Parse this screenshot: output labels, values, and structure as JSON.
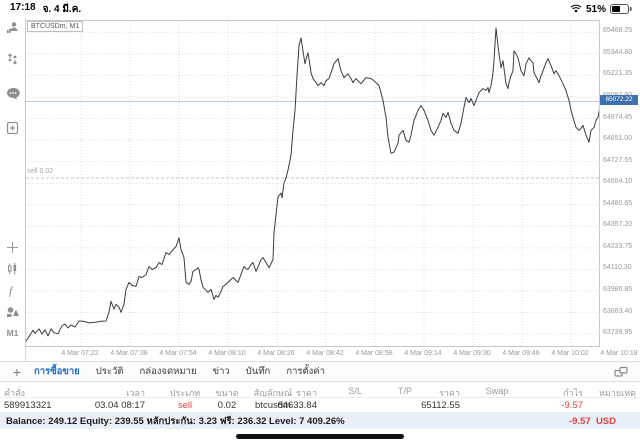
{
  "status_bar": {
    "time": "17:18",
    "date": "จ. 4 มี.ค.",
    "battery_percent": "51%"
  },
  "chart": {
    "symbol_label": "BTCUSDm, M1"
  },
  "sidebar": {
    "timeframe": "M1"
  },
  "tabs": [
    {
      "slug": "trade",
      "label": "การซื้อขาย",
      "active": true
    },
    {
      "slug": "history",
      "label": "ประวัติ",
      "active": false
    },
    {
      "slug": "mailbox",
      "label": "กล่องจดหมาย",
      "active": false
    },
    {
      "slug": "news",
      "label": "ข่าว",
      "active": false
    },
    {
      "slug": "journal",
      "label": "บันทึก",
      "active": false
    },
    {
      "slug": "settings",
      "label": "การตั้งค่า",
      "active": false
    }
  ],
  "positions_table": {
    "columns": [
      {
        "key": "order",
        "label": "คำสั่ง",
        "value": "589913321",
        "red": false
      },
      {
        "key": "time",
        "label": "เวลา",
        "value": "03.04 08:17",
        "red": false
      },
      {
        "key": "type",
        "label": "ประเภท",
        "value": "sell",
        "red": true
      },
      {
        "key": "volume",
        "label": "ขนาด",
        "value": "0.02",
        "red": false
      },
      {
        "key": "symbol",
        "label": "สัญลักษณ์",
        "value": "btcusdm",
        "red": false
      },
      {
        "key": "price-open",
        "label": "ราคา",
        "value": "64633.84",
        "red": false
      },
      {
        "key": "sl",
        "label": "S/L",
        "value": "",
        "red": false
      },
      {
        "key": "tp",
        "label": "T/P",
        "value": "",
        "red": false
      },
      {
        "key": "price-current",
        "label": "ราคา",
        "value": "65112.55",
        "red": false
      },
      {
        "key": "swap",
        "label": "Swap",
        "value": "",
        "red": false
      },
      {
        "key": "profit",
        "label": "กำไร",
        "value": "-9.57",
        "red": true
      },
      {
        "key": "comment",
        "label": "หมายเหตุ",
        "value": "",
        "red": false
      }
    ]
  },
  "account": {
    "summary": "Balance: 249.12 Equity: 239.55 หลักประกัน: 3.23 ฟรี: 236.32 Level: 7 409.26%",
    "profit": "-9.57",
    "currency": "USD"
  },
  "colors": {
    "accent_blue": "#1f6cc5",
    "price_badge_blue": "#3d72ae",
    "loss_red": "#e1443c",
    "line": "#3c3c3c",
    "grid": "#dcdcdc",
    "current_price_line": "#b5cee7",
    "sell_line": "#c6c6c6",
    "summary_bg": "#e9eff7"
  },
  "chart_data": {
    "type": "line",
    "title": "BTCUSDm, M1",
    "x_labels": [
      "4 Mar 07:22",
      "4 Mar 07:38",
      "4 Mar 07:54",
      "4 Mar 08:10",
      "4 Mar 08:26",
      "4 Mar 08:42",
      "4 Mar 08:58",
      "4 Mar 09:14",
      "4 Mar 09:30",
      "4 Mar 09:46",
      "4 Mar 10:02",
      "4 Mar 10:18"
    ],
    "y_tick_labels": [
      "65468.25",
      "65344.80",
      "65221.35",
      "65097.90",
      "64974.45",
      "64851.00",
      "64727.55",
      "64604.10",
      "64480.65",
      "64357.20",
      "64233.75",
      "64110.30",
      "63986.85",
      "63863.40",
      "63739.95"
    ],
    "y_axis_range": {
      "top": 65533,
      "bottom": 63672
    },
    "current_price": "65072.22",
    "position_line": {
      "label": "sell 0.02",
      "price": 64633.84
    },
    "grid": "dotted",
    "series": [
      {
        "name": "BTCUSDm bid",
        "points": [
          [
            0,
            63700
          ],
          [
            4,
            63735
          ],
          [
            7,
            63762
          ],
          [
            9,
            63745
          ],
          [
            13,
            63770
          ],
          [
            16,
            63740
          ],
          [
            19,
            63764
          ],
          [
            22,
            63730
          ],
          [
            25,
            63770
          ],
          [
            28,
            63748
          ],
          [
            32,
            63742
          ],
          [
            36,
            63788
          ],
          [
            39,
            63797
          ],
          [
            42,
            63775
          ],
          [
            45,
            63792
          ],
          [
            49,
            63780
          ],
          [
            53,
            63815
          ],
          [
            58,
            63813
          ],
          [
            63,
            63804
          ],
          [
            70,
            63809
          ],
          [
            75,
            63814
          ],
          [
            80,
            63815
          ],
          [
            83,
            63866
          ],
          [
            85,
            63928
          ],
          [
            88,
            63883
          ],
          [
            90,
            63910
          ],
          [
            93,
            63895
          ],
          [
            95,
            63865
          ],
          [
            98,
            63911
          ],
          [
            100,
            63996
          ],
          [
            103,
            64036
          ],
          [
            106,
            64019
          ],
          [
            110,
            64013
          ],
          [
            113,
            64070
          ],
          [
            116,
            64064
          ],
          [
            120,
            64081
          ],
          [
            123,
            64127
          ],
          [
            126,
            64110
          ],
          [
            130,
            64121
          ],
          [
            133,
            64150
          ],
          [
            136,
            64138
          ],
          [
            140,
            64207
          ],
          [
            143,
            64196
          ],
          [
            147,
            64224
          ],
          [
            150,
            64241
          ],
          [
            153,
            64292
          ],
          [
            155,
            64224
          ],
          [
            158,
            64178
          ],
          [
            160,
            64036
          ],
          [
            163,
            64025
          ],
          [
            165,
            64042
          ],
          [
            167,
            64099
          ],
          [
            170,
            64110
          ],
          [
            172,
            64121
          ],
          [
            173,
            64110
          ],
          [
            175,
            64053
          ],
          [
            177,
            64008
          ],
          [
            180,
            63991
          ],
          [
            182,
            63979
          ],
          [
            185,
            63996
          ],
          [
            188,
            63939
          ],
          [
            190,
            63962
          ],
          [
            192,
            63951
          ],
          [
            195,
            63985
          ],
          [
            197,
            64013
          ],
          [
            200,
            64025
          ],
          [
            202,
            64036
          ],
          [
            205,
            64053
          ],
          [
            207,
            64064
          ],
          [
            210,
            64047
          ],
          [
            212,
            64036
          ],
          [
            215,
            64081
          ],
          [
            218,
            64127
          ],
          [
            220,
            64116
          ],
          [
            222,
            64110
          ],
          [
            225,
            64138
          ],
          [
            227,
            64150
          ],
          [
            230,
            64099
          ],
          [
            233,
            64138
          ],
          [
            235,
            64167
          ],
          [
            237,
            64178
          ],
          [
            240,
            64150
          ],
          [
            243,
            64121
          ],
          [
            245,
            64144
          ],
          [
            247,
            64167
          ],
          [
            248,
            64321
          ],
          [
            250,
            64423
          ],
          [
            252,
            64526
          ],
          [
            255,
            64548
          ],
          [
            256,
            64520
          ],
          [
            258,
            64605
          ],
          [
            260,
            64634
          ],
          [
            262,
            64679
          ],
          [
            265,
            64765
          ],
          [
            267,
            64907
          ],
          [
            269,
            65021
          ],
          [
            271,
            65220
          ],
          [
            273,
            65391
          ],
          [
            275,
            65436
          ],
          [
            277,
            65362
          ],
          [
            279,
            65288
          ],
          [
            281,
            65334
          ],
          [
            282,
            65351
          ],
          [
            284,
            65277
          ],
          [
            285,
            65237
          ],
          [
            287,
            65203
          ],
          [
            290,
            65180
          ],
          [
            292,
            65163
          ],
          [
            295,
            65180
          ],
          [
            298,
            65163
          ],
          [
            300,
            65191
          ],
          [
            303,
            65203
          ],
          [
            308,
            65288
          ],
          [
            312,
            65317
          ],
          [
            315,
            65248
          ],
          [
            318,
            65209
          ],
          [
            322,
            65231
          ],
          [
            325,
            65203
          ],
          [
            327,
            65180
          ],
          [
            330,
            65203
          ],
          [
            335,
            65174
          ],
          [
            340,
            65209
          ],
          [
            345,
            65203
          ],
          [
            348,
            65191
          ],
          [
            353,
            65163
          ],
          [
            355,
            65123
          ],
          [
            357,
            65078
          ],
          [
            360,
            64981
          ],
          [
            362,
            64867
          ],
          [
            365,
            64776
          ],
          [
            368,
            64782
          ],
          [
            372,
            64833
          ],
          [
            373,
            64879
          ],
          [
            377,
            64907
          ],
          [
            380,
            64850
          ],
          [
            383,
            64839
          ],
          [
            385,
            64879
          ],
          [
            388,
            64964
          ],
          [
            392,
            65021
          ],
          [
            395,
            65049
          ],
          [
            398,
            65021
          ],
          [
            402,
            64964
          ],
          [
            405,
            64907
          ],
          [
            408,
            64879
          ],
          [
            412,
            64924
          ],
          [
            415,
            64964
          ],
          [
            417,
            65004
          ],
          [
            420,
            64981
          ],
          [
            422,
            65010
          ],
          [
            425,
            64947
          ],
          [
            428,
            64907
          ],
          [
            432,
            64890
          ],
          [
            435,
            64947
          ],
          [
            438,
            65038
          ],
          [
            440,
            65095
          ],
          [
            443,
            65066
          ],
          [
            445,
            65089
          ],
          [
            448,
            65049
          ],
          [
            450,
            65078
          ],
          [
            453,
            65123
          ],
          [
            457,
            65146
          ],
          [
            460,
            65135
          ],
          [
            462,
            65152
          ],
          [
            463,
            65123
          ],
          [
            465,
            65163
          ],
          [
            467,
            65237
          ],
          [
            468,
            65305
          ],
          [
            470,
            65493
          ],
          [
            472,
            65391
          ],
          [
            473,
            65345
          ],
          [
            475,
            65265
          ],
          [
            477,
            65305
          ],
          [
            480,
            65174
          ],
          [
            482,
            65146
          ],
          [
            483,
            65180
          ],
          [
            485,
            65220
          ],
          [
            487,
            65248
          ],
          [
            488,
            65362
          ],
          [
            490,
            65345
          ],
          [
            492,
            65322
          ],
          [
            495,
            65248
          ],
          [
            498,
            65220
          ],
          [
            500,
            65288
          ],
          [
            503,
            65322
          ],
          [
            505,
            65305
          ],
          [
            507,
            65294
          ],
          [
            508,
            65237
          ],
          [
            512,
            65191
          ],
          [
            513,
            65180
          ],
          [
            515,
            65220
          ],
          [
            517,
            65248
          ],
          [
            520,
            65294
          ],
          [
            522,
            65317
          ],
          [
            525,
            65277
          ],
          [
            528,
            65231
          ],
          [
            530,
            65248
          ],
          [
            533,
            65220
          ],
          [
            535,
            65197
          ],
          [
            537,
            65174
          ],
          [
            540,
            65135
          ],
          [
            543,
            65078
          ],
          [
            545,
            65021
          ],
          [
            547,
            64981
          ],
          [
            550,
            64924
          ],
          [
            553,
            64907
          ],
          [
            555,
            64918
          ],
          [
            557,
            64935
          ],
          [
            560,
            64879
          ],
          [
            563,
            64839
          ],
          [
            565,
            64907
          ],
          [
            568,
            64924
          ],
          [
            570,
            64964
          ],
          [
            572,
            64981
          ],
          [
            575,
            65072
          ]
        ]
      }
    ]
  }
}
